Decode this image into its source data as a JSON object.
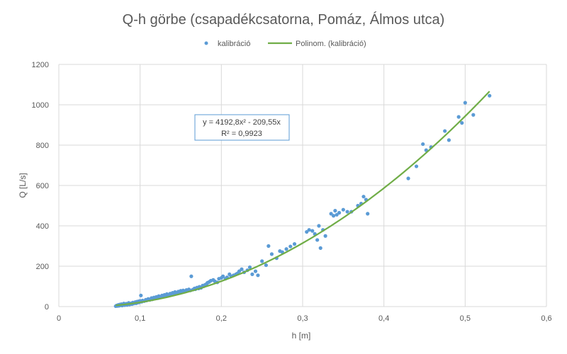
{
  "chart_data": {
    "type": "scatter",
    "title": "Q-h görbe (csapadékcsatorna, Pomáz, Álmos utca)",
    "xlabel": "h [m]",
    "ylabel": "Q [L/s]",
    "xlim": [
      0,
      0.6
    ],
    "ylim": [
      0,
      1200
    ],
    "x_ticks": [
      "0",
      "0,1",
      "0,2",
      "0,3",
      "0,4",
      "0,5",
      "0,6"
    ],
    "y_ticks": [
      "0",
      "200",
      "400",
      "600",
      "800",
      "1000",
      "1200"
    ],
    "grid": true,
    "legend": {
      "placement": "top-center",
      "entries": [
        "kalibráció",
        "Polinom. (kalibráció)"
      ]
    },
    "series": [
      {
        "name": "kalibráció",
        "kind": "scatter",
        "color": "#5b9bd5",
        "points": [
          [
            0.07,
            2
          ],
          [
            0.071,
            5
          ],
          [
            0.072,
            3
          ],
          [
            0.073,
            8
          ],
          [
            0.074,
            4
          ],
          [
            0.075,
            10
          ],
          [
            0.076,
            6
          ],
          [
            0.077,
            12
          ],
          [
            0.078,
            5
          ],
          [
            0.079,
            9
          ],
          [
            0.08,
            15
          ],
          [
            0.081,
            7
          ],
          [
            0.082,
            11
          ],
          [
            0.083,
            14
          ],
          [
            0.084,
            8
          ],
          [
            0.085,
            12
          ],
          [
            0.086,
            18
          ],
          [
            0.087,
            10
          ],
          [
            0.088,
            13
          ],
          [
            0.089,
            16
          ],
          [
            0.09,
            12
          ],
          [
            0.091,
            20
          ],
          [
            0.092,
            15
          ],
          [
            0.093,
            18
          ],
          [
            0.094,
            22
          ],
          [
            0.095,
            16
          ],
          [
            0.096,
            24
          ],
          [
            0.097,
            19
          ],
          [
            0.098,
            26
          ],
          [
            0.099,
            21
          ],
          [
            0.1,
            28
          ],
          [
            0.101,
            55
          ],
          [
            0.102,
            24
          ],
          [
            0.103,
            30
          ],
          [
            0.105,
            27
          ],
          [
            0.107,
            34
          ],
          [
            0.108,
            30
          ],
          [
            0.11,
            38
          ],
          [
            0.112,
            33
          ],
          [
            0.114,
            42
          ],
          [
            0.115,
            36
          ],
          [
            0.117,
            45
          ],
          [
            0.118,
            40
          ],
          [
            0.12,
            48
          ],
          [
            0.122,
            42
          ],
          [
            0.123,
            52
          ],
          [
            0.125,
            46
          ],
          [
            0.127,
            55
          ],
          [
            0.128,
            50
          ],
          [
            0.13,
            58
          ],
          [
            0.132,
            53
          ],
          [
            0.133,
            62
          ],
          [
            0.135,
            56
          ],
          [
            0.137,
            64
          ],
          [
            0.138,
            60
          ],
          [
            0.14,
            68
          ],
          [
            0.142,
            63
          ],
          [
            0.143,
            72
          ],
          [
            0.145,
            66
          ],
          [
            0.147,
            74
          ],
          [
            0.148,
            70
          ],
          [
            0.15,
            78
          ],
          [
            0.152,
            72
          ],
          [
            0.153,
            80
          ],
          [
            0.155,
            74
          ],
          [
            0.157,
            82
          ],
          [
            0.158,
            78
          ],
          [
            0.16,
            85
          ],
          [
            0.162,
            80
          ],
          [
            0.163,
            150
          ],
          [
            0.165,
            84
          ],
          [
            0.167,
            90
          ],
          [
            0.168,
            86
          ],
          [
            0.17,
            94
          ],
          [
            0.172,
            90
          ],
          [
            0.173,
            98
          ],
          [
            0.175,
            93
          ],
          [
            0.177,
            104
          ],
          [
            0.178,
            100
          ],
          [
            0.18,
            108
          ],
          [
            0.182,
            113
          ],
          [
            0.183,
            118
          ],
          [
            0.185,
            122
          ],
          [
            0.187,
            128
          ],
          [
            0.19,
            132
          ],
          [
            0.192,
            125
          ],
          [
            0.195,
            120
          ],
          [
            0.197,
            138
          ],
          [
            0.2,
            142
          ],
          [
            0.202,
            150
          ],
          [
            0.205,
            138
          ],
          [
            0.207,
            145
          ],
          [
            0.21,
            160
          ],
          [
            0.212,
            150
          ],
          [
            0.215,
            155
          ],
          [
            0.218,
            160
          ],
          [
            0.22,
            165
          ],
          [
            0.222,
            175
          ],
          [
            0.225,
            185
          ],
          [
            0.228,
            170
          ],
          [
            0.232,
            180
          ],
          [
            0.235,
            195
          ],
          [
            0.238,
            160
          ],
          [
            0.242,
            175
          ],
          [
            0.245,
            155
          ],
          [
            0.25,
            225
          ],
          [
            0.255,
            205
          ],
          [
            0.258,
            300
          ],
          [
            0.262,
            260
          ],
          [
            0.268,
            240
          ],
          [
            0.272,
            275
          ],
          [
            0.275,
            270
          ],
          [
            0.28,
            285
          ],
          [
            0.285,
            298
          ],
          [
            0.29,
            310
          ],
          [
            0.305,
            370
          ],
          [
            0.308,
            380
          ],
          [
            0.312,
            375
          ],
          [
            0.315,
            360
          ],
          [
            0.318,
            330
          ],
          [
            0.32,
            400
          ],
          [
            0.322,
            290
          ],
          [
            0.325,
            380
          ],
          [
            0.328,
            350
          ],
          [
            0.335,
            460
          ],
          [
            0.338,
            450
          ],
          [
            0.34,
            475
          ],
          [
            0.342,
            455
          ],
          [
            0.345,
            465
          ],
          [
            0.35,
            480
          ],
          [
            0.355,
            470
          ],
          [
            0.36,
            470
          ],
          [
            0.368,
            500
          ],
          [
            0.372,
            510
          ],
          [
            0.375,
            545
          ],
          [
            0.378,
            530
          ],
          [
            0.38,
            460
          ],
          [
            0.43,
            635
          ],
          [
            0.44,
            695
          ],
          [
            0.448,
            805
          ],
          [
            0.452,
            775
          ],
          [
            0.458,
            790
          ],
          [
            0.475,
            870
          ],
          [
            0.48,
            825
          ],
          [
            0.492,
            940
          ],
          [
            0.496,
            910
          ],
          [
            0.5,
            1010
          ],
          [
            0.51,
            950
          ],
          [
            0.53,
            1045
          ]
        ]
      },
      {
        "name": "Polinom. (kalibráció)",
        "kind": "trendline",
        "color": "#70ad47",
        "equation": {
          "a": 4192.8,
          "b": -209.55,
          "c": 0
        },
        "x_range": [
          0.07,
          0.53
        ]
      }
    ],
    "annotation": {
      "equation_text": "y = 4192,8x² - 209,55x",
      "r2_text": "R² = 0,9923"
    }
  }
}
